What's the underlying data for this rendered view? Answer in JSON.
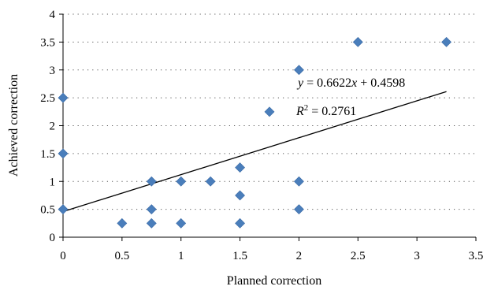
{
  "chart_data": {
    "type": "scatter",
    "title": "",
    "xlabel": "Planned correction",
    "ylabel": "Achieved correction",
    "xlim": [
      0,
      3.5
    ],
    "ylim": [
      0,
      4
    ],
    "xticks": [
      0,
      0.5,
      1,
      1.5,
      2,
      2.5,
      3,
      3.5
    ],
    "yticks": [
      0,
      0.5,
      1,
      1.5,
      2,
      2.5,
      3,
      3.5,
      4
    ],
    "xtick_labels": [
      "0",
      "0.5",
      "1",
      "1.5",
      "2",
      "2.5",
      "3",
      "3.5"
    ],
    "ytick_labels": [
      "0",
      "0.5",
      "1",
      "1.5",
      "2",
      "2.5",
      "3",
      "3.5",
      "4"
    ],
    "grid": "horizontal-dotted",
    "legend": "none",
    "marker": "diamond",
    "marker_color": "#4a7ebb",
    "points": [
      {
        "x": 0,
        "y": 0.5
      },
      {
        "x": 0,
        "y": 1.5
      },
      {
        "x": 0,
        "y": 2.5
      },
      {
        "x": 0.5,
        "y": 0.25
      },
      {
        "x": 0.75,
        "y": 0.25
      },
      {
        "x": 0.75,
        "y": 0.5
      },
      {
        "x": 0.75,
        "y": 1
      },
      {
        "x": 1,
        "y": 0.25
      },
      {
        "x": 1,
        "y": 1
      },
      {
        "x": 1.25,
        "y": 1
      },
      {
        "x": 1.5,
        "y": 0.25
      },
      {
        "x": 1.5,
        "y": 0.75
      },
      {
        "x": 1.5,
        "y": 1.25
      },
      {
        "x": 1.75,
        "y": 2.25
      },
      {
        "x": 2,
        "y": 0.5
      },
      {
        "x": 2,
        "y": 1
      },
      {
        "x": 2,
        "y": 3
      },
      {
        "x": 2.5,
        "y": 3.5
      },
      {
        "x": 3.25,
        "y": 3.5
      }
    ],
    "trendline": {
      "slope": 0.6622,
      "intercept": 0.4598,
      "x_range": [
        0,
        3.25
      ],
      "color": "#000000"
    },
    "annotations": {
      "equation_lhs": "y",
      "equation_eq": " = 0.6622",
      "equation_var": "x",
      "equation_rhs": " + 0.4598",
      "r2_base": "R",
      "r2_exp": "2",
      "r2_value": " = 0.2761"
    }
  }
}
